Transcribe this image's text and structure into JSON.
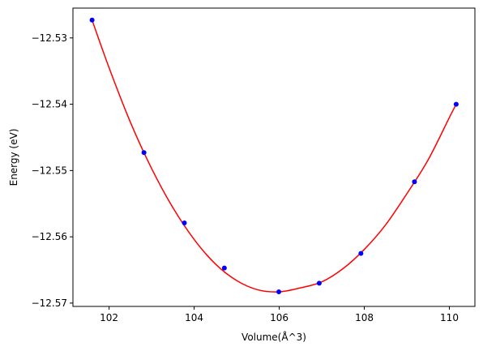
{
  "chart_data": {
    "type": "scatter",
    "title": "",
    "xlabel": "Volume(Å^3)",
    "ylabel": "Energy (eV)",
    "xlim": [
      101.15,
      110.6
    ],
    "ylim": [
      -12.5705,
      -12.5255
    ],
    "xticks": [
      102,
      104,
      106,
      108,
      110
    ],
    "yticks": [
      -12.53,
      -12.54,
      -12.55,
      -12.56,
      -12.57
    ],
    "xtick_labels": [
      "102",
      "104",
      "106",
      "108",
      "110"
    ],
    "ytick_labels": [
      "−12.53",
      "−12.54",
      "−12.55",
      "−12.56",
      "−12.57"
    ],
    "grid": false,
    "legend": null,
    "series": [
      {
        "kind": "points",
        "color": "#0000ff",
        "x": [
          101.6,
          102.82,
          103.77,
          104.71,
          105.99,
          106.94,
          107.92,
          109.18,
          110.16
        ],
        "y": [
          -12.5273,
          -12.5473,
          -12.5579,
          -12.5647,
          -12.5683,
          -12.567,
          -12.5625,
          -12.5517,
          -12.54
        ]
      },
      {
        "kind": "fit-curve",
        "color": "#ff0000",
        "x": [
          101.6,
          102.0,
          102.5,
          103.0,
          103.5,
          104.0,
          104.5,
          105.0,
          105.5,
          106.0,
          106.5,
          107.0,
          107.5,
          108.0,
          108.5,
          109.0,
          109.5,
          110.0,
          110.16
        ],
        "y": [
          -12.5273,
          -12.5345,
          -12.5427,
          -12.5497,
          -12.5556,
          -12.5604,
          -12.5641,
          -12.5666,
          -12.568,
          -12.5683,
          -12.5677,
          -12.5668,
          -12.5648,
          -12.5619,
          -12.5582,
          -12.5535,
          -12.5484,
          -12.542,
          -12.54
        ]
      }
    ]
  }
}
